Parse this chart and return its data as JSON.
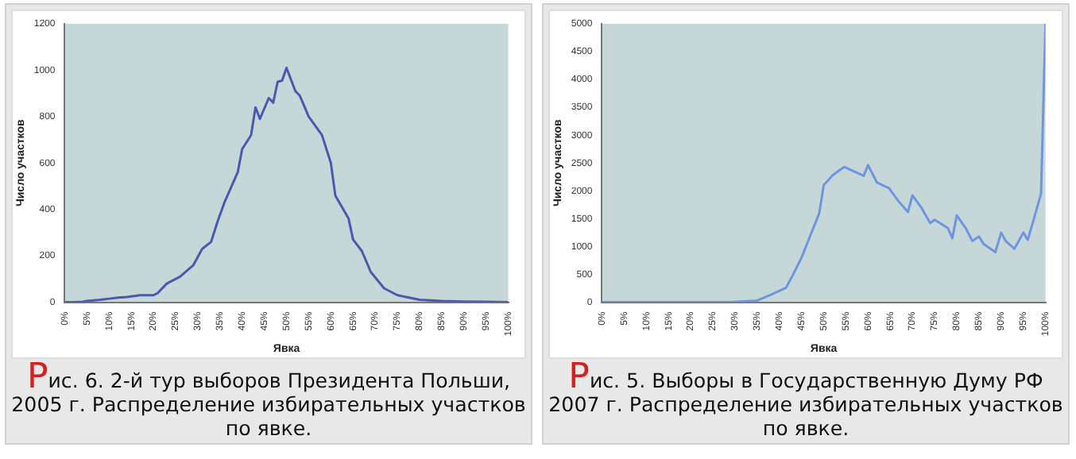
{
  "chart_data": [
    {
      "type": "line",
      "xlabel": "Явка",
      "ylabel": "Число участков",
      "annotations": [
        "Рис. 6. 2-й тур выборов Президента Польши, 2005 г. Распределение избирательных участков по явке."
      ],
      "x": [
        0,
        2,
        4,
        5,
        8,
        10,
        12,
        14,
        17,
        20,
        21,
        23,
        26,
        29,
        31,
        33,
        34.5,
        36,
        39,
        40,
        42,
        43,
        44,
        46,
        47,
        48,
        49,
        50,
        52,
        53,
        55,
        58,
        60,
        61,
        64,
        65,
        67,
        69,
        72,
        75,
        80,
        85,
        90,
        95,
        100
      ],
      "series": [
        {
          "color": "#4a58b0",
          "values": [
            0,
            0,
            2,
            5,
            10,
            15,
            20,
            22,
            30,
            30,
            40,
            80,
            110,
            160,
            230,
            260,
            350,
            430,
            560,
            660,
            720,
            840,
            790,
            880,
            860,
            950,
            955,
            1010,
            910,
            890,
            800,
            720,
            600,
            460,
            360,
            270,
            220,
            130,
            60,
            30,
            10,
            5,
            3,
            2,
            0
          ]
        }
      ],
      "xlim": [
        0,
        100
      ],
      "ylim": [
        0,
        1200
      ],
      "yticks": [
        0,
        200,
        400,
        600,
        800,
        1000,
        1200
      ],
      "xticks": [
        {
          "value": 0,
          "label": "0%"
        },
        {
          "value": 5,
          "label": "5%"
        },
        {
          "value": 10,
          "label": "10%"
        },
        {
          "value": 15,
          "label": "15%"
        },
        {
          "value": 20,
          "label": "20%"
        },
        {
          "value": 25,
          "label": "25%"
        },
        {
          "value": 30,
          "label": "30%"
        },
        {
          "value": 35,
          "label": "35%"
        },
        {
          "value": 40,
          "label": "40%"
        },
        {
          "value": 45,
          "label": "45%"
        },
        {
          "value": 50,
          "label": "50%"
        },
        {
          "value": 55,
          "label": "55%"
        },
        {
          "value": 60,
          "label": "60%"
        },
        {
          "value": 65,
          "label": "65%"
        },
        {
          "value": 70,
          "label": "70%"
        },
        {
          "value": 75,
          "label": "75%"
        },
        {
          "value": 80,
          "label": "80%"
        },
        {
          "value": 85,
          "label": "85%"
        },
        {
          "value": 90,
          "label": "90%"
        },
        {
          "value": 95,
          "label": "95%"
        },
        {
          "value": 100,
          "label": "100%"
        }
      ],
      "grid": false,
      "legend": false,
      "marker": "none",
      "line_style": "solid"
    },
    {
      "type": "line",
      "xlabel": "Явка",
      "ylabel": "Число участков",
      "annotations": [
        "Рис. 5. Выборы в Государственную Думу РФ 2007 г. Распределение избирательных участков по явке."
      ],
      "x": [
        0,
        10,
        20,
        29,
        35,
        38,
        41.5,
        43,
        45,
        47.5,
        49,
        50,
        52,
        54.6,
        59,
        60,
        62,
        64.7,
        67,
        69,
        70,
        72,
        74,
        75,
        78,
        79,
        80,
        82,
        83.5,
        85,
        86,
        88.7,
        90,
        91,
        93,
        95,
        96,
        97.4,
        99,
        100
      ],
      "series": [
        {
          "color": "#6f95e0",
          "values": [
            0,
            0,
            0,
            0,
            30,
            130,
            260,
            480,
            800,
            1300,
            1600,
            2100,
            2280,
            2430,
            2270,
            2460,
            2150,
            2050,
            1800,
            1620,
            1920,
            1700,
            1420,
            1480,
            1330,
            1150,
            1560,
            1330,
            1100,
            1180,
            1050,
            900,
            1250,
            1100,
            960,
            1250,
            1120,
            1500,
            1950,
            5000
          ]
        }
      ],
      "xlim": [
        0,
        100
      ],
      "ylim": [
        0,
        5000
      ],
      "yticks": [
        0,
        500,
        1000,
        1500,
        2000,
        2500,
        3000,
        3500,
        4000,
        4500,
        5000
      ],
      "xticks": [
        {
          "value": 0,
          "label": "0%"
        },
        {
          "value": 5,
          "label": "5%"
        },
        {
          "value": 10,
          "label": "10%"
        },
        {
          "value": 15,
          "label": "15%"
        },
        {
          "value": 20,
          "label": "20%"
        },
        {
          "value": 25,
          "label": "25%"
        },
        {
          "value": 30,
          "label": "30%"
        },
        {
          "value": 35,
          "label": "35%"
        },
        {
          "value": 40,
          "label": "40%"
        },
        {
          "value": 45,
          "label": "45%"
        },
        {
          "value": 50,
          "label": "50%"
        },
        {
          "value": 55,
          "label": "55%"
        },
        {
          "value": 60,
          "label": "60%"
        },
        {
          "value": 65,
          "label": "65%"
        },
        {
          "value": 70,
          "label": "70%"
        },
        {
          "value": 75,
          "label": "75%"
        },
        {
          "value": 80,
          "label": "80%"
        },
        {
          "value": 85,
          "label": "85%"
        },
        {
          "value": 90,
          "label": "90%"
        },
        {
          "value": 95,
          "label": "95%"
        },
        {
          "value": 100,
          "label": "100%"
        }
      ],
      "grid": false,
      "legend": false,
      "marker": "none",
      "line_style": "solid"
    }
  ]
}
